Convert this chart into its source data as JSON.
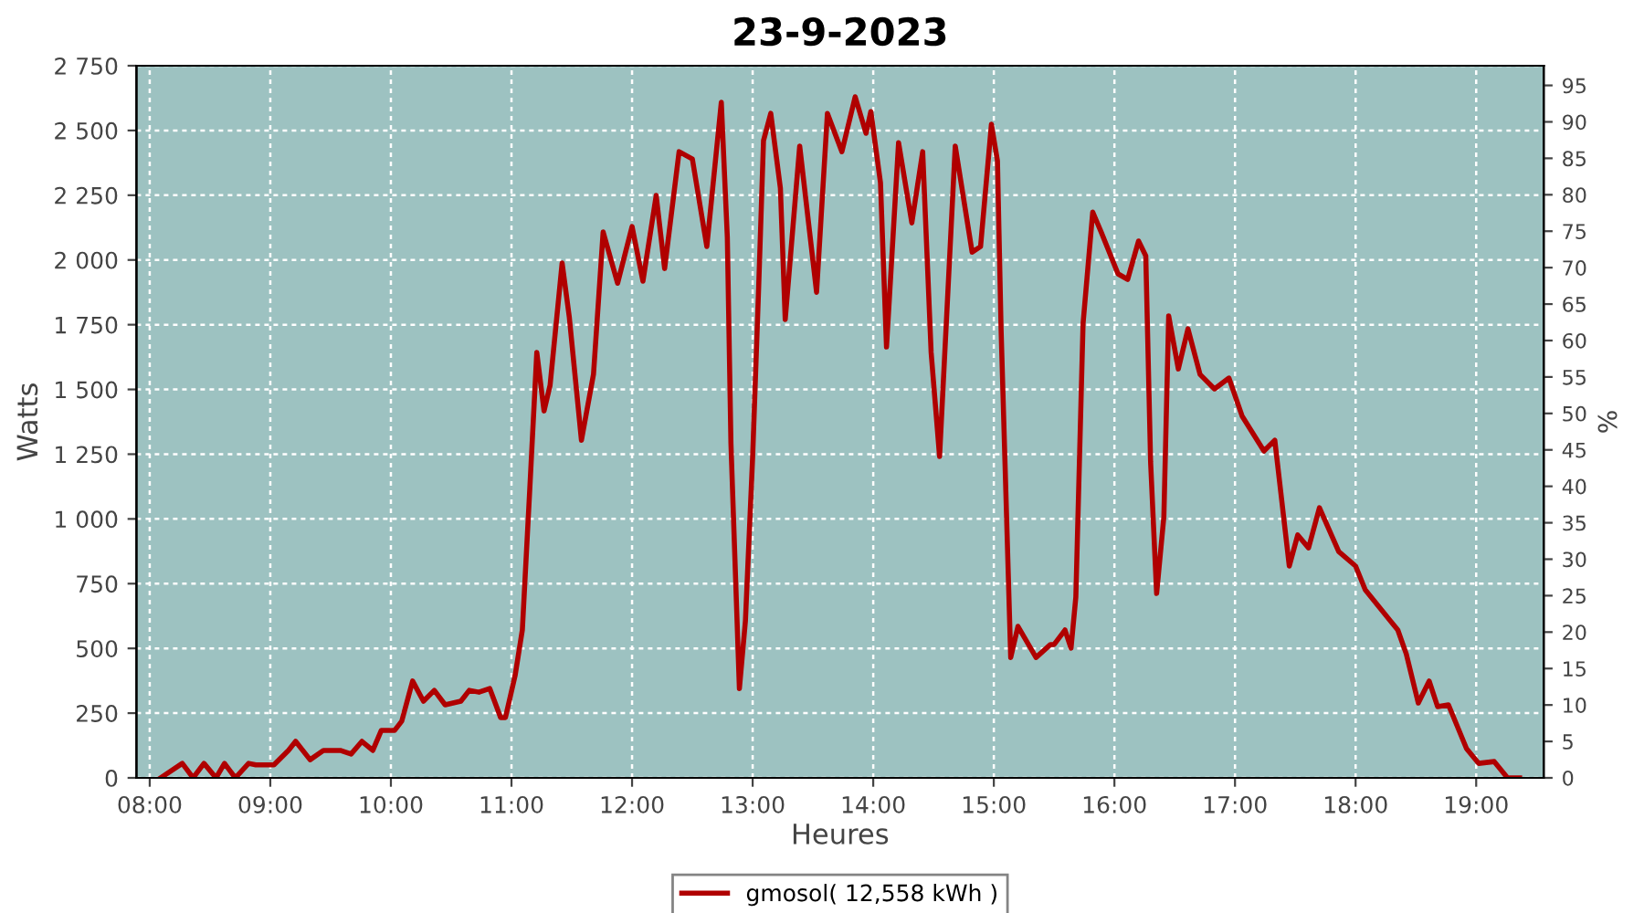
{
  "chart_data": {
    "type": "line",
    "title": "23-9-2023",
    "xlabel": "Heures",
    "ylabel": "Watts",
    "y2label": "%",
    "x": [
      8.09,
      8.27,
      8.36,
      8.45,
      8.55,
      8.62,
      8.71,
      8.82,
      8.88,
      9.03,
      9.15,
      9.21,
      9.33,
      9.44,
      9.58,
      9.67,
      9.76,
      9.85,
      9.92,
      10.03,
      10.09,
      10.18,
      10.27,
      10.36,
      10.45,
      10.58,
      10.65,
      10.73,
      10.82,
      10.91,
      10.95,
      11.03,
      11.09,
      11.15,
      11.21,
      11.27,
      11.32,
      11.42,
      11.48,
      11.58,
      11.68,
      11.76,
      11.88,
      12.0,
      12.09,
      12.2,
      12.27,
      12.39,
      12.5,
      12.62,
      12.74,
      12.79,
      12.82,
      12.89,
      12.94,
      13.0,
      13.05,
      13.09,
      13.15,
      13.23,
      13.27,
      13.39,
      13.53,
      13.62,
      13.74,
      13.85,
      13.94,
      13.98,
      14.06,
      14.11,
      14.21,
      14.32,
      14.41,
      14.48,
      14.55,
      14.68,
      14.82,
      14.89,
      14.98,
      15.03,
      15.06,
      15.14,
      15.2,
      15.35,
      15.47,
      15.5,
      15.59,
      15.64,
      15.68,
      15.74,
      15.82,
      15.89,
      16.03,
      16.11,
      16.2,
      16.26,
      16.3,
      16.35,
      16.41,
      16.45,
      16.53,
      16.61,
      16.71,
      16.83,
      16.95,
      17.06,
      17.24,
      17.33,
      17.45,
      17.52,
      17.61,
      17.7,
      17.86,
      18.0,
      18.08,
      18.35,
      18.42,
      18.52,
      18.61,
      18.68,
      18.77,
      18.92,
      19.02,
      19.15,
      19.26,
      19.36
    ],
    "series": [
      {
        "name": "gmosol( 12,558 kWh )",
        "color": "#b00000",
        "values": [
          0,
          56,
          0,
          56,
          0,
          56,
          0,
          56,
          50,
          50,
          106,
          141,
          70,
          106,
          106,
          92,
          141,
          106,
          183,
          183,
          219,
          374,
          296,
          338,
          282,
          296,
          338,
          331,
          345,
          233,
          233,
          395,
          571,
          1100,
          1643,
          1417,
          1516,
          1988,
          1777,
          1304,
          1558,
          2108,
          1910,
          2129,
          1918,
          2249,
          1967,
          2418,
          2390,
          2052,
          2609,
          2087,
          1290,
          345,
          606,
          1241,
          1897,
          2461,
          2566,
          2277,
          1770,
          2440,
          1875,
          2566,
          2418,
          2630,
          2489,
          2573,
          2298,
          1664,
          2453,
          2143,
          2418,
          1643,
          1241,
          2440,
          2030,
          2052,
          2524,
          2383,
          1734,
          465,
          585,
          465,
          515,
          515,
          571,
          501,
          698,
          1755,
          2185,
          2108,
          1946,
          1925,
          2073,
          2016,
          1220,
          712,
          1008,
          1784,
          1579,
          1734,
          1558,
          1502,
          1544,
          1396,
          1262,
          1304,
          818,
          938,
          888,
          1043,
          874,
          818,
          726,
          571,
          479,
          289,
          374,
          275,
          282,
          113,
          56,
          63,
          0,
          0
        ]
      }
    ],
    "xlim": [
      7.89,
      19.56
    ],
    "xticks": [
      {
        "value": 8,
        "label": "08:00"
      },
      {
        "value": 9,
        "label": "09:00"
      },
      {
        "value": 10,
        "label": "10:00"
      },
      {
        "value": 11,
        "label": "11:00"
      },
      {
        "value": 12,
        "label": "12:00"
      },
      {
        "value": 13,
        "label": "13:00"
      },
      {
        "value": 14,
        "label": "14:00"
      },
      {
        "value": 15,
        "label": "15:00"
      },
      {
        "value": 16,
        "label": "16:00"
      },
      {
        "value": 17,
        "label": "17:00"
      },
      {
        "value": 18,
        "label": "18:00"
      },
      {
        "value": 19,
        "label": "19:00"
      }
    ],
    "ylim": [
      0,
      2750
    ],
    "yticks": [
      0,
      250,
      500,
      750,
      {
        "value": 1000,
        "label": "1 000"
      },
      {
        "value": 1250,
        "label": "1 250"
      },
      {
        "value": 1500,
        "label": "1 500"
      },
      {
        "value": 1750,
        "label": "1 750"
      },
      {
        "value": 2000,
        "label": "2 000"
      },
      {
        "value": 2250,
        "label": "2 250"
      },
      {
        "value": 2500,
        "label": "2 500"
      },
      {
        "value": 2750,
        "label": "2 750"
      }
    ],
    "y2lim": [
      0,
      97.7
    ],
    "y2ticks": [
      0,
      5,
      10,
      15,
      20,
      25,
      30,
      35,
      40,
      45,
      50,
      55,
      60,
      65,
      70,
      75,
      80,
      85,
      90,
      95
    ],
    "grid": true,
    "legend": "bottom",
    "marker": "none",
    "line_style": "solid"
  }
}
